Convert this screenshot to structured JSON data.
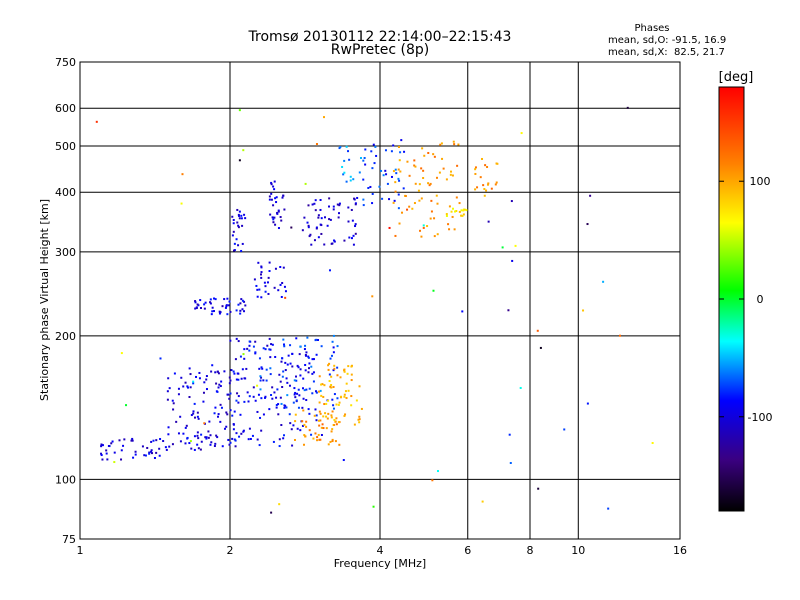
{
  "chart_data": {
    "type": "scatter",
    "title": "Tromsø 20130112 22:14:00–22:15:43",
    "subtitle": "RwPretec (8p)",
    "xlabel": "Frequency [MHz]",
    "ylabel": "Stationary phase Virtual Height [km]",
    "xscale": "log",
    "yscale": "log",
    "xlim": [
      1,
      16
    ],
    "ylim": [
      75,
      750
    ],
    "x_ticks": [
      "1",
      "2",
      "4",
      "6",
      "8",
      "10",
      "16"
    ],
    "y_ticks": [
      "75",
      "100",
      "200",
      "300",
      "400",
      "500",
      "600",
      "750"
    ],
    "grid": true,
    "phase_box": {
      "title": "Phases",
      "line_o": "mean, sd,O: -91.5, 16.9",
      "line_x": "mean, sd,X:  82.5, 21.7"
    },
    "colorbar": {
      "label": "[deg]",
      "range": [
        -180,
        180
      ],
      "ticks": [
        "100",
        "0",
        "-100"
      ],
      "tick_values": [
        100,
        0,
        -100
      ]
    },
    "series": [
      {
        "values_note": "",
        "clusters": [
          {
            "x": [
              1.08,
              1.5
            ],
            "y": [
              110,
              122
            ],
            "phase": -100,
            "n": 45
          },
          {
            "x": [
              1.5,
              2.1
            ],
            "y": [
              115,
              175
            ],
            "phase": -100,
            "n": 120
          },
          {
            "x": [
              2.0,
              3.0
            ],
            "y": [
              117,
              200
            ],
            "phase": -95,
            "n": 160
          },
          {
            "x": [
              2.3,
              3.3
            ],
            "y": [
              140,
              200
            ],
            "phase": -75,
            "n": 60
          },
          {
            "x": [
              2.7,
              3.4
            ],
            "y": [
              118,
              140
            ],
            "phase": 110,
            "n": 40
          },
          {
            "x": [
              3.0,
              3.7
            ],
            "y": [
              130,
              175
            ],
            "phase": 95,
            "n": 70
          },
          {
            "x": [
              1.7,
              2.15
            ],
            "y": [
              222,
              240
            ],
            "phase": -100,
            "n": 45
          },
          {
            "x": [
              2.2,
              2.6
            ],
            "y": [
              240,
              285
            ],
            "phase": -100,
            "n": 30
          },
          {
            "x": [
              2.0,
              2.15
            ],
            "y": [
              300,
              370
            ],
            "phase": -100,
            "n": 25
          },
          {
            "x": [
              2.4,
              2.6
            ],
            "y": [
              330,
              425
            ],
            "phase": -100,
            "n": 30
          },
          {
            "x": [
              2.8,
              3.6
            ],
            "y": [
              310,
              390
            ],
            "phase": -105,
            "n": 60
          },
          {
            "x": [
              3.3,
              3.7
            ],
            "y": [
              420,
              500
            ],
            "phase": -60,
            "n": 15
          },
          {
            "x": [
              3.7,
              4.5
            ],
            "y": [
              370,
              520
            ],
            "phase": -80,
            "n": 40
          },
          {
            "x": [
              4.2,
              5.8
            ],
            "y": [
              320,
              520
            ],
            "phase": 110,
            "n": 70
          },
          {
            "x": [
              5.2,
              6.0
            ],
            "y": [
              355,
              370
            ],
            "phase": 80,
            "n": 15
          },
          {
            "x": [
              6.2,
              6.9
            ],
            "y": [
              390,
              470
            ],
            "phase": 110,
            "n": 20
          },
          {
            "x": [
              1.05,
              15.8
            ],
            "y": [
              85,
              650
            ],
            "phase": 0,
            "n": 60
          }
        ]
      }
    ]
  }
}
